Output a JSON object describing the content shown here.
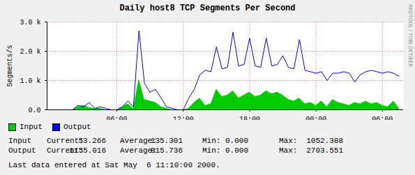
{
  "chart_data": {
    "type": "line",
    "title": "Daily host8 TCP Segments Per Second",
    "y_label": "Segments/s",
    "watermark": "RRDTOOL / TOBI OETIKER",
    "x": [
      1,
      1.5,
      2,
      2.5,
      3,
      3.5,
      4,
      4.5,
      5,
      5.5,
      6,
      6.5,
      7,
      7.5,
      8,
      8.5,
      9,
      9.5,
      10,
      10.5,
      11,
      11.5,
      12,
      12.5,
      13,
      13.5,
      14,
      14.5,
      15,
      15.5,
      16,
      16.5,
      17,
      17.5,
      18,
      18.5,
      19,
      19.5,
      20,
      20.5,
      21,
      21.5,
      22,
      22.5,
      23,
      23.5,
      24,
      24.5,
      25,
      25.5,
      26,
      26.5,
      27,
      27.5,
      28,
      28.5,
      29,
      29.5,
      30,
      30.5,
      31,
      31.5
    ],
    "series": [
      {
        "name": "Input",
        "color": "#00cc00",
        "type": "area",
        "values": [
          0,
          0,
          0,
          100,
          150,
          80,
          50,
          50,
          0,
          0,
          0,
          100,
          200,
          50,
          1050,
          350,
          300,
          250,
          100,
          50,
          0,
          0,
          0,
          50,
          250,
          400,
          150,
          200,
          700,
          450,
          500,
          650,
          400,
          500,
          600,
          450,
          500,
          650,
          550,
          600,
          500,
          350,
          300,
          400,
          200,
          250,
          150,
          300,
          100,
          350,
          250,
          200,
          150,
          250,
          200,
          300,
          200,
          250,
          150,
          100,
          300,
          50
        ]
      },
      {
        "name": "Output",
        "color": "#0000ff",
        "type": "line",
        "values": [
          0,
          0,
          0,
          150,
          100,
          250,
          50,
          100,
          50,
          0,
          0,
          100,
          300,
          100,
          2700,
          900,
          600,
          700,
          400,
          100,
          50,
          0,
          0,
          400,
          700,
          1200,
          1350,
          1300,
          2150,
          1400,
          1450,
          2650,
          1500,
          1550,
          2450,
          1500,
          1450,
          2450,
          1500,
          1550,
          1850,
          1450,
          1400,
          2400,
          1350,
          1300,
          1250,
          1300,
          1000,
          1250,
          1250,
          1300,
          1250,
          950,
          1200,
          1300,
          1350,
          1300,
          1250,
          1300,
          1250,
          1150
        ]
      }
    ],
    "xlim": [
      -0.3,
      31.9
    ],
    "xticks": [
      {
        "value": 6,
        "label": "06:00"
      },
      {
        "value": 12,
        "label": "12:00"
      },
      {
        "value": 18,
        "label": "18:00"
      },
      {
        "value": 24,
        "label": "00:00"
      },
      {
        "value": 30,
        "label": "06:00"
      }
    ],
    "ylim": [
      0,
      3000
    ],
    "yticks": [
      {
        "value": 0,
        "label": "0.0"
      },
      {
        "value": 1000,
        "label": "1.0 k"
      },
      {
        "value": 2000,
        "label": "2.0 k"
      },
      {
        "value": 3000,
        "label": "3.0 k"
      }
    ],
    "grid": true,
    "stats": [
      [
        "Input",
        "Current:",
        "53.266",
        "Average:",
        "135.301",
        "Min:",
        "0.000",
        "Max:",
        "1052.388"
      ],
      [
        "Output",
        "Current:",
        "1155.016",
        "Average:",
        "815.736",
        "Min:",
        "0.000",
        "Max:",
        "2703.551"
      ]
    ],
    "footer": "Last data entered at Sat May  6 11:10:00 2000."
  }
}
